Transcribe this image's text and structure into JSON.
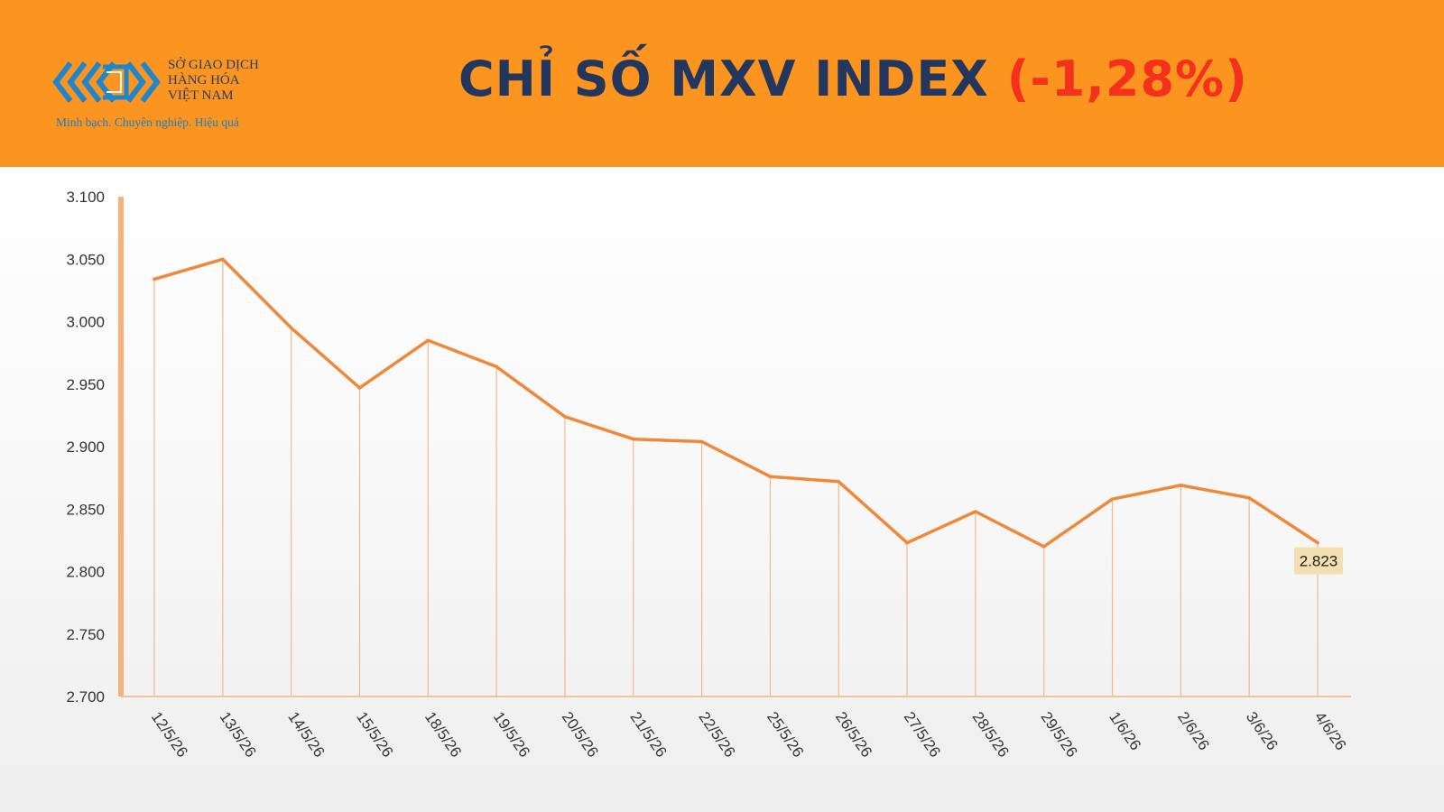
{
  "header": {
    "logo": {
      "line1": "SỞ GIAO DỊCH",
      "line2": "HÀNG HÓA",
      "line3": "VIỆT NAM",
      "slogan": "Minh bạch. Chuyên nghiệp. Hiệu quả"
    },
    "title": "CHỈ SỐ MXV INDEX",
    "change": "(-1,28%)"
  },
  "colors": {
    "header_bg": "#fb951f",
    "title": "#23375e",
    "change": "#f3311c",
    "line": "#f0883a",
    "drop_lines": "#f5b88a",
    "label_bg": "#f3dfb0"
  },
  "chart_data": {
    "type": "line",
    "categories": [
      "12/5/26",
      "13/5/26",
      "14/5/26",
      "15/5/26",
      "18/5/26",
      "19/5/26",
      "20/5/26",
      "21/5/26",
      "22/5/26",
      "25/5/26",
      "26/5/26",
      "27/5/26",
      "28/5/26",
      "29/5/26",
      "1/6/26",
      "2/6/26",
      "3/6/26",
      "4/6/26"
    ],
    "values": [
      3034,
      3050,
      2995,
      2947,
      2985,
      2964,
      2924,
      2906,
      2904,
      2876,
      2872,
      2823,
      2848,
      2820,
      2858,
      2869,
      2859,
      2823
    ],
    "ylim": [
      2700,
      3100
    ],
    "yticks": [
      3100,
      3050,
      3000,
      2950,
      2900,
      2850,
      2800,
      2750,
      2700
    ],
    "ytick_labels": [
      "3.100",
      "3.050",
      "3.000",
      "2.950",
      "2.900",
      "2.850",
      "2.800",
      "2.750",
      "2.700"
    ],
    "last_label": "2.823",
    "grid": false,
    "xlabel": "",
    "ylabel": ""
  }
}
